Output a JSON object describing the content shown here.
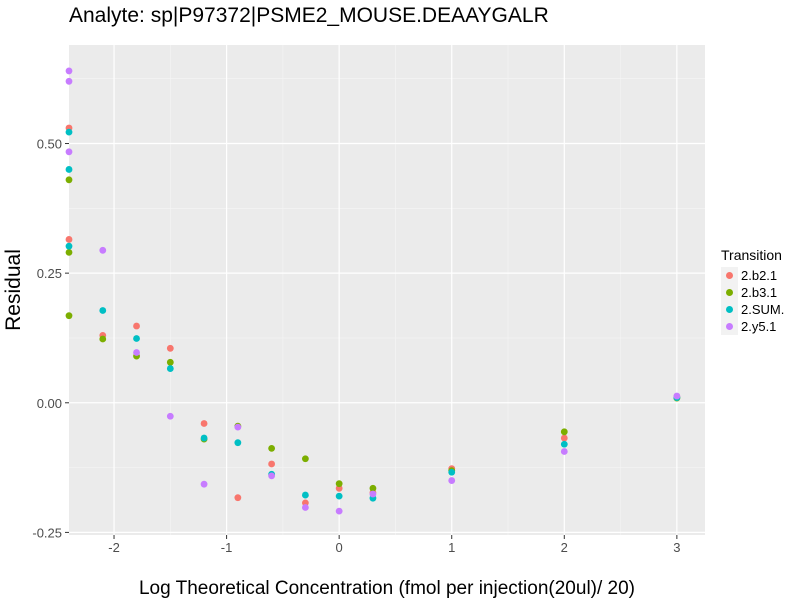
{
  "chart_data": {
    "type": "scatter",
    "title": "Analyte: sp|P97372|PSME2_MOUSE.DEAAYGALR",
    "xlabel": "Log Theoretical Concentration (fmol per injection(20ul)/ 20)",
    "ylabel": "Residual",
    "xlim": [
      -2.4,
      3.25
    ],
    "ylim": [
      -0.255,
      0.69
    ],
    "x_ticks": [
      -2,
      -1,
      0,
      1,
      2,
      3
    ],
    "x_tick_labels": [
      "-2",
      "-1",
      "0",
      "1",
      "2",
      "3"
    ],
    "y_ticks": [
      -0.25,
      0,
      0.25,
      0.5
    ],
    "y_tick_labels": [
      "-0.25",
      "0.00",
      "0.25",
      "0.50"
    ],
    "grid": true,
    "legend": {
      "title": "Transition",
      "position": "right"
    },
    "series": [
      {
        "name": "2.b2.1",
        "color": "#F8766D",
        "x": [
          -2.4,
          -2.4,
          -2.1,
          -1.8,
          -1.5,
          -1.2,
          -0.9,
          -0.6,
          -0.3,
          0,
          0.3,
          1,
          2,
          3
        ],
        "y": [
          0.53,
          0.315,
          0.13,
          0.148,
          0.105,
          -0.04,
          -0.183,
          -0.118,
          -0.193,
          -0.165,
          -0.173,
          -0.127,
          -0.068,
          0.012
        ]
      },
      {
        "name": "2.b3.1",
        "color": "#7CAE00",
        "x": [
          -2.4,
          -2.4,
          -2.4,
          -2.1,
          -1.8,
          -1.5,
          -1.2,
          -0.9,
          -0.6,
          -0.3,
          0,
          0.3,
          1,
          2,
          3
        ],
        "y": [
          0.43,
          0.29,
          0.168,
          0.123,
          0.09,
          0.078,
          -0.07,
          -0.045,
          -0.088,
          -0.108,
          -0.156,
          -0.165,
          -0.131,
          -0.056,
          0.009
        ]
      },
      {
        "name": "2.SUM.",
        "color": "#00BFC4",
        "x": [
          -2.4,
          -2.4,
          -2.4,
          -2.1,
          -1.8,
          -1.5,
          -1.2,
          -0.9,
          -0.6,
          -0.3,
          0,
          0.3,
          1,
          2,
          3
        ],
        "y": [
          0.522,
          0.45,
          0.302,
          0.178,
          0.124,
          0.066,
          -0.068,
          -0.077,
          -0.138,
          -0.178,
          -0.18,
          -0.184,
          -0.134,
          -0.08,
          0.01
        ]
      },
      {
        "name": "2.y5.1",
        "color": "#C77CFF",
        "x": [
          -2.4,
          -2.4,
          -2.4,
          -2.1,
          -1.8,
          -1.5,
          -1.2,
          -0.9,
          -0.6,
          -0.3,
          0,
          0.3,
          1,
          2,
          3
        ],
        "y": [
          0.64,
          0.62,
          0.484,
          0.294,
          0.097,
          -0.026,
          -0.157,
          -0.047,
          -0.141,
          -0.202,
          -0.209,
          -0.176,
          -0.15,
          -0.094,
          0.013
        ]
      }
    ]
  }
}
